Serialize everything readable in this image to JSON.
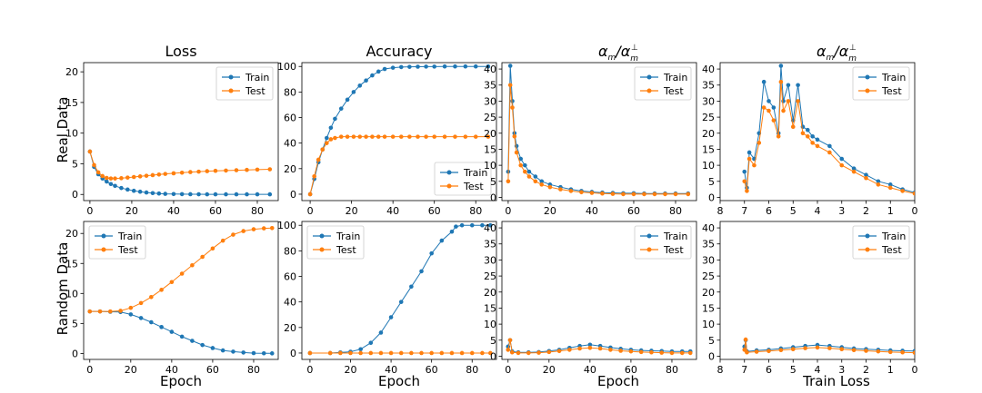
{
  "figure": {
    "row_labels": [
      "Real Data",
      "Random Data"
    ],
    "xlabels": [
      "Epoch",
      "Epoch",
      "Epoch",
      "Train Loss"
    ],
    "column_titles": [
      "Loss",
      "Accuracy",
      "α_m/α_m^⊥",
      "α_m/α_m^⊥"
    ]
  },
  "colors": {
    "Train": "#1f77b4",
    "Test": "#ff7f0e"
  },
  "chart_data": [
    {
      "id": "real-loss",
      "type": "line",
      "title": "Loss",
      "xlabel": "",
      "ylabel": "Real Data",
      "xlim": [
        -3,
        90
      ],
      "ylim": [
        -1,
        21.5
      ],
      "xticks": [
        0,
        20,
        40,
        60,
        80
      ],
      "yticks": [
        0,
        5,
        10,
        15,
        20
      ],
      "legend": "top-right",
      "series": [
        {
          "name": "Train",
          "x": [
            0,
            2,
            4,
            6,
            8,
            10,
            12,
            15,
            18,
            21,
            24,
            27,
            30,
            33,
            36,
            40,
            44,
            48,
            52,
            56,
            60,
            65,
            70,
            75,
            80,
            86
          ],
          "y": [
            7,
            4.5,
            3.3,
            2.6,
            2.1,
            1.7,
            1.4,
            1.05,
            0.8,
            0.6,
            0.45,
            0.32,
            0.22,
            0.15,
            0.1,
            0.07,
            0.05,
            0.04,
            0.03,
            0.02,
            0.02,
            0.02,
            0.02,
            0.02,
            0.02,
            0.02
          ]
        },
        {
          "name": "Test",
          "x": [
            0,
            2,
            4,
            6,
            8,
            10,
            12,
            15,
            18,
            21,
            24,
            27,
            30,
            33,
            36,
            40,
            44,
            48,
            52,
            56,
            60,
            65,
            70,
            75,
            80,
            86
          ],
          "y": [
            7,
            4.8,
            3.6,
            3.0,
            2.7,
            2.6,
            2.6,
            2.65,
            2.75,
            2.85,
            2.95,
            3.05,
            3.15,
            3.25,
            3.35,
            3.45,
            3.55,
            3.65,
            3.72,
            3.8,
            3.85,
            3.9,
            3.95,
            4.0,
            4.05,
            4.1
          ]
        }
      ]
    },
    {
      "id": "real-acc",
      "type": "line",
      "title": "Accuracy",
      "xlabel": "",
      "ylabel": "",
      "xlim": [
        -4,
        90
      ],
      "ylim": [
        -5,
        103
      ],
      "xticks": [
        0,
        20,
        40,
        60,
        80
      ],
      "yticks": [
        0,
        20,
        40,
        60,
        80,
        100
      ],
      "legend": "lower-right",
      "series": [
        {
          "name": "Train",
          "x": [
            0,
            2,
            4,
            6,
            8,
            10,
            12,
            15,
            18,
            21,
            24,
            27,
            30,
            33,
            36,
            40,
            44,
            48,
            52,
            56,
            60,
            65,
            70,
            75,
            80,
            86
          ],
          "y": [
            0,
            12,
            25,
            35,
            44,
            52,
            59,
            67,
            74,
            80,
            85,
            89,
            93,
            96,
            98,
            99,
            99.5,
            99.7,
            99.8,
            99.9,
            99.9,
            100,
            100,
            100,
            100,
            100
          ]
        },
        {
          "name": "Test",
          "x": [
            0,
            2,
            4,
            6,
            8,
            10,
            12,
            15,
            18,
            21,
            24,
            27,
            30,
            33,
            36,
            40,
            44,
            48,
            52,
            56,
            60,
            65,
            70,
            75,
            80,
            86
          ],
          "y": [
            0,
            14,
            27,
            35,
            40,
            43,
            44,
            45,
            45,
            45,
            45,
            45,
            45,
            45,
            45,
            45,
            45,
            45,
            45,
            45,
            45,
            45,
            45,
            45,
            45,
            45
          ]
        }
      ]
    },
    {
      "id": "real-alpha-epoch",
      "type": "line",
      "title": "α_m/α_m^⊥",
      "xlabel": "",
      "ylabel": "",
      "xlim": [
        -3,
        90
      ],
      "ylim": [
        -1,
        42
      ],
      "xticks": [
        0,
        20,
        40,
        60,
        80
      ],
      "yticks": [
        0,
        5,
        10,
        15,
        20,
        25,
        30,
        35,
        40
      ],
      "legend": "top-right",
      "series": [
        {
          "name": "Train",
          "x": [
            0,
            1,
            2,
            3,
            4,
            6,
            8,
            10,
            13,
            16,
            20,
            25,
            30,
            35,
            40,
            45,
            50,
            55,
            60,
            65,
            70,
            75,
            80,
            86
          ],
          "y": [
            8,
            41,
            30,
            20,
            16,
            12,
            10,
            8,
            6.5,
            5,
            4,
            3.2,
            2.5,
            2,
            1.7,
            1.5,
            1.4,
            1.3,
            1.3,
            1.2,
            1.2,
            1.2,
            1.2,
            1.2
          ]
        },
        {
          "name": "Test",
          "x": [
            0,
            1,
            2,
            3,
            4,
            6,
            8,
            10,
            13,
            16,
            20,
            25,
            30,
            35,
            40,
            45,
            50,
            55,
            60,
            65,
            70,
            75,
            80,
            86
          ],
          "y": [
            5,
            35,
            28,
            19,
            14,
            10,
            8,
            6.5,
            5,
            4,
            3.2,
            2.5,
            2,
            1.6,
            1.4,
            1.2,
            1.1,
            1,
            1,
            1,
            1,
            1,
            1,
            1
          ]
        }
      ]
    },
    {
      "id": "real-alpha-loss",
      "type": "line",
      "title": "α_m/α_m^⊥",
      "xlabel": "",
      "ylabel": "",
      "xlim": [
        8,
        0
      ],
      "ylim": [
        -1,
        42
      ],
      "xticks": [
        8,
        7,
        6,
        5,
        4,
        3,
        2,
        1,
        0
      ],
      "yticks": [
        0,
        5,
        10,
        15,
        20,
        25,
        30,
        35,
        40
      ],
      "legend": "top-right",
      "series": [
        {
          "name": "Train",
          "x": [
            7,
            6.9,
            6.8,
            6.6,
            6.4,
            6.2,
            6,
            5.8,
            5.6,
            5.5,
            5.4,
            5.2,
            5,
            4.8,
            4.6,
            4.4,
            4.2,
            4,
            3.5,
            3,
            2.5,
            2,
            1.5,
            1,
            0.5,
            0
          ],
          "y": [
            8,
            3,
            14,
            12,
            20,
            36,
            30,
            28,
            20,
            41,
            30,
            35,
            24,
            35,
            22,
            21,
            19,
            18,
            16,
            12,
            9,
            7,
            5,
            4,
            2.5,
            1.5
          ]
        },
        {
          "name": "Test",
          "x": [
            7,
            6.9,
            6.8,
            6.6,
            6.4,
            6.2,
            6,
            5.8,
            5.6,
            5.5,
            5.4,
            5.2,
            5,
            4.8,
            4.6,
            4.4,
            4.2,
            4,
            3.5,
            3,
            2.5,
            2,
            1.5,
            1,
            0.5,
            0
          ],
          "y": [
            5,
            2,
            12,
            10,
            17,
            28,
            27,
            24,
            19,
            36,
            27,
            30,
            22,
            30,
            20,
            19,
            17,
            16,
            14,
            10,
            8,
            6,
            4,
            3,
            2,
            1.2
          ]
        }
      ]
    },
    {
      "id": "rand-loss",
      "type": "line",
      "title": "",
      "xlabel": "Epoch",
      "ylabel": "Random Data",
      "xlim": [
        -3,
        92
      ],
      "ylim": [
        -1,
        22
      ],
      "xticks": [
        0,
        20,
        40,
        60,
        80
      ],
      "yticks": [
        0,
        5,
        10,
        15,
        20
      ],
      "legend": "top-left",
      "series": [
        {
          "name": "Train",
          "x": [
            0,
            5,
            10,
            15,
            20,
            25,
            30,
            35,
            40,
            45,
            50,
            55,
            60,
            65,
            70,
            75,
            80,
            85,
            89
          ],
          "y": [
            7,
            7,
            6.95,
            6.9,
            6.5,
            5.9,
            5.2,
            4.4,
            3.6,
            2.8,
            2.1,
            1.4,
            0.9,
            0.5,
            0.3,
            0.15,
            0.05,
            0.02,
            0.01
          ]
        },
        {
          "name": "Test",
          "x": [
            0,
            5,
            10,
            15,
            20,
            25,
            30,
            35,
            40,
            45,
            50,
            55,
            60,
            65,
            70,
            75,
            80,
            85,
            89
          ],
          "y": [
            7,
            7,
            7,
            7.1,
            7.6,
            8.4,
            9.4,
            10.6,
            11.9,
            13.3,
            14.7,
            16.1,
            17.5,
            18.8,
            19.8,
            20.4,
            20.7,
            20.85,
            20.9
          ]
        }
      ]
    },
    {
      "id": "rand-acc",
      "type": "line",
      "title": "",
      "xlabel": "Epoch",
      "ylabel": "",
      "xlim": [
        -4,
        92
      ],
      "ylim": [
        -5,
        103
      ],
      "xticks": [
        0,
        20,
        40,
        60,
        80
      ],
      "yticks": [
        0,
        20,
        40,
        60,
        80,
        100
      ],
      "legend": "top-left",
      "series": [
        {
          "name": "Train",
          "x": [
            0,
            10,
            15,
            20,
            25,
            30,
            35,
            40,
            45,
            50,
            55,
            60,
            65,
            70,
            72,
            75,
            80,
            85,
            89
          ],
          "y": [
            0,
            0,
            0.5,
            1,
            3,
            8,
            16,
            28,
            40,
            52,
            64,
            78,
            88,
            95,
            99,
            100,
            100,
            100,
            100
          ]
        },
        {
          "name": "Test",
          "x": [
            0,
            10,
            15,
            20,
            25,
            30,
            35,
            40,
            45,
            50,
            55,
            60,
            65,
            70,
            75,
            80,
            85,
            89
          ],
          "y": [
            0,
            0,
            0,
            0,
            0,
            0,
            0,
            0,
            0,
            0,
            0,
            0,
            0,
            0,
            0,
            0,
            0,
            0
          ]
        }
      ]
    },
    {
      "id": "rand-alpha-epoch",
      "type": "line",
      "title": "",
      "xlabel": "Epoch",
      "ylabel": "",
      "xlim": [
        -3,
        92
      ],
      "ylim": [
        -1,
        42
      ],
      "xticks": [
        0,
        20,
        40,
        60,
        80
      ],
      "yticks": [
        0,
        5,
        10,
        15,
        20,
        25,
        30,
        35,
        40
      ],
      "legend": "top-right",
      "series": [
        {
          "name": "Train",
          "x": [
            0,
            1,
            2,
            5,
            10,
            15,
            20,
            25,
            30,
            35,
            40,
            45,
            50,
            55,
            60,
            65,
            70,
            75,
            80,
            85,
            89
          ],
          "y": [
            3,
            5,
            1.5,
            1.2,
            1.2,
            1.3,
            1.6,
            2,
            2.6,
            3.2,
            3.6,
            3.2,
            2.7,
            2.3,
            2,
            1.8,
            1.7,
            1.6,
            1.5,
            1.5,
            1.5
          ]
        },
        {
          "name": "Test",
          "x": [
            0,
            1,
            2,
            5,
            10,
            15,
            20,
            25,
            30,
            35,
            40,
            45,
            50,
            55,
            60,
            65,
            70,
            75,
            80,
            85,
            89
          ],
          "y": [
            2,
            5,
            1.2,
            1,
            1,
            1.1,
            1.3,
            1.6,
            2,
            2.4,
            2.6,
            2.4,
            2,
            1.7,
            1.5,
            1.3,
            1.2,
            1.1,
            1,
            1,
            1
          ]
        }
      ]
    },
    {
      "id": "rand-alpha-loss",
      "type": "line",
      "title": "",
      "xlabel": "Train Loss",
      "ylabel": "",
      "xlim": [
        8,
        0
      ],
      "ylim": [
        -1,
        42
      ],
      "xticks": [
        8,
        7,
        6,
        5,
        4,
        3,
        2,
        1,
        0
      ],
      "yticks": [
        0,
        5,
        10,
        15,
        20,
        25,
        30,
        35,
        40
      ],
      "legend": "top-right",
      "series": [
        {
          "name": "Train",
          "x": [
            7,
            6.95,
            6.9,
            6.5,
            6,
            5.5,
            5,
            4.5,
            4,
            3.5,
            3,
            2.5,
            2,
            1.5,
            1,
            0.5,
            0
          ],
          "y": [
            3,
            5,
            1.5,
            1.8,
            2,
            2.4,
            2.8,
            3.2,
            3.5,
            3.2,
            2.8,
            2.4,
            2.2,
            2,
            1.8,
            1.7,
            1.6
          ]
        },
        {
          "name": "Test",
          "x": [
            7,
            6.95,
            6.9,
            6.5,
            6,
            5.5,
            5,
            4.5,
            4,
            3.5,
            3,
            2.5,
            2,
            1.5,
            1,
            0.5,
            0
          ],
          "y": [
            2,
            5.2,
            1.2,
            1.4,
            1.6,
            1.9,
            2.2,
            2.5,
            2.7,
            2.5,
            2.2,
            1.9,
            1.7,
            1.5,
            1.3,
            1.2,
            1.1
          ]
        }
      ]
    }
  ]
}
